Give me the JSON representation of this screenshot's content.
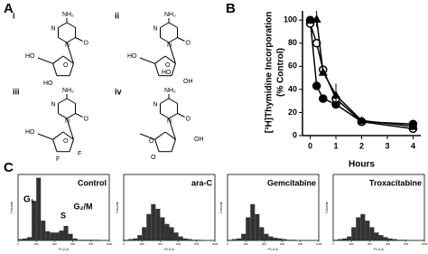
{
  "panel_labels": {
    "a": "A",
    "b": "B",
    "c": "C"
  },
  "structures": [
    {
      "label": "i",
      "amine": "NH₂",
      "ring_n": [
        "N",
        "N"
      ],
      "carbonyl": "O",
      "groups": [
        "HO",
        "O",
        "HO"
      ]
    },
    {
      "label": "ii",
      "amine": "NH₂",
      "ring_n": [
        "N",
        "N"
      ],
      "carbonyl": "O",
      "groups": [
        "HO",
        "O",
        "HO",
        "OH"
      ]
    },
    {
      "label": "iii",
      "amine": "NH₂",
      "ring_n": [
        "N",
        "N"
      ],
      "carbonyl": "O",
      "groups": [
        "HO",
        "O",
        "F",
        "F"
      ]
    },
    {
      "label": "iv",
      "amine": "NH₂",
      "ring_n": [
        "N",
        "N"
      ],
      "carbonyl": "O",
      "groups": [
        "O",
        "O",
        "OH"
      ]
    }
  ],
  "chart_data": [
    {
      "type": "line",
      "y_label": [
        "[³H]Thymidine Incorporation",
        "(% Control)"
      ],
      "x_label": "Hours",
      "xlim": [
        -0.3,
        4.3
      ],
      "xticks": [
        0,
        1,
        2,
        3,
        4
      ],
      "ylim": [
        0,
        108
      ],
      "yticks": [
        0,
        20,
        40,
        60,
        80,
        100
      ],
      "series": [
        {
          "marker": "filled-circle",
          "color": "#000",
          "x": [
            0,
            0.25,
            0.5,
            1,
            2,
            4
          ],
          "values": [
            100,
            43,
            32,
            27,
            12,
            10
          ]
        },
        {
          "marker": "open-circle",
          "color": "#000",
          "x": [
            0,
            0.25,
            0.5,
            1,
            2,
            4
          ],
          "values": [
            97,
            80,
            57,
            32,
            12,
            6
          ]
        },
        {
          "marker": "filled-triangle",
          "color": "#000",
          "x": [
            0,
            0.25,
            0.5,
            1,
            2,
            4
          ],
          "values": [
            100,
            101,
            55,
            35,
            13,
            8
          ],
          "errors": [
            3,
            7,
            null,
            10,
            null,
            null
          ]
        }
      ]
    },
    {
      "type": "histogram",
      "title": "Control",
      "y_label": "Counts",
      "x_label": "FL2-A",
      "annotations": [
        "G₁",
        "S",
        "G₂/M"
      ],
      "xlim": [
        0,
        1000
      ],
      "xticks": [
        0,
        200,
        400,
        600,
        800,
        1000
      ],
      "ylim": [
        0,
        100
      ],
      "bins": [
        0,
        50,
        100,
        150,
        200,
        250,
        300,
        350,
        400,
        450,
        500,
        550,
        600,
        650,
        700,
        750,
        800,
        850,
        900,
        950,
        1000
      ],
      "values": [
        2,
        3,
        5,
        60,
        95,
        30,
        14,
        12,
        12,
        15,
        22,
        10,
        3,
        1,
        1,
        1,
        1,
        1,
        0,
        0
      ]
    },
    {
      "type": "histogram",
      "title": "ara-C",
      "y_label": "Counts",
      "x_label": "FL2-A",
      "xlim": [
        0,
        1000
      ],
      "xticks": [
        0,
        200,
        400,
        600,
        800,
        1000
      ],
      "ylim": [
        0,
        100
      ],
      "bins": [
        0,
        50,
        100,
        150,
        200,
        250,
        300,
        350,
        400,
        450,
        500,
        550,
        600,
        650,
        700,
        750,
        800,
        850,
        900,
        950,
        1000
      ],
      "values": [
        1,
        2,
        3,
        8,
        20,
        40,
        55,
        48,
        35,
        25,
        20,
        12,
        6,
        3,
        2,
        1,
        1,
        0,
        0,
        0
      ]
    },
    {
      "type": "histogram",
      "title": "Gemcitabine",
      "y_label": "Counts",
      "x_label": "FL2-A",
      "xlim": [
        0,
        1000
      ],
      "xticks": [
        0,
        200,
        400,
        600,
        800,
        1000
      ],
      "ylim": [
        0,
        100
      ],
      "bins": [
        0,
        50,
        100,
        150,
        200,
        250,
        300,
        350,
        400,
        450,
        500,
        550,
        600,
        650,
        700,
        750,
        800,
        850,
        900,
        950,
        1000
      ],
      "values": [
        1,
        2,
        3,
        10,
        35,
        55,
        40,
        20,
        10,
        6,
        4,
        3,
        2,
        1,
        1,
        0,
        0,
        0,
        0,
        0
      ]
    },
    {
      "type": "histogram",
      "title": "Troxacitabine",
      "y_label": "Counts",
      "x_label": "FL2-A",
      "xlim": [
        0,
        1000
      ],
      "xticks": [
        0,
        200,
        400,
        600,
        800,
        1000
      ],
      "ylim": [
        0,
        100
      ],
      "bins": [
        0,
        50,
        100,
        150,
        200,
        250,
        300,
        350,
        400,
        450,
        500,
        550,
        600,
        650,
        700,
        750,
        800,
        850,
        900,
        950,
        1000
      ],
      "values": [
        1,
        2,
        3,
        6,
        20,
        35,
        40,
        30,
        20,
        12,
        8,
        5,
        3,
        2,
        1,
        1,
        0,
        0,
        0,
        0
      ]
    }
  ]
}
